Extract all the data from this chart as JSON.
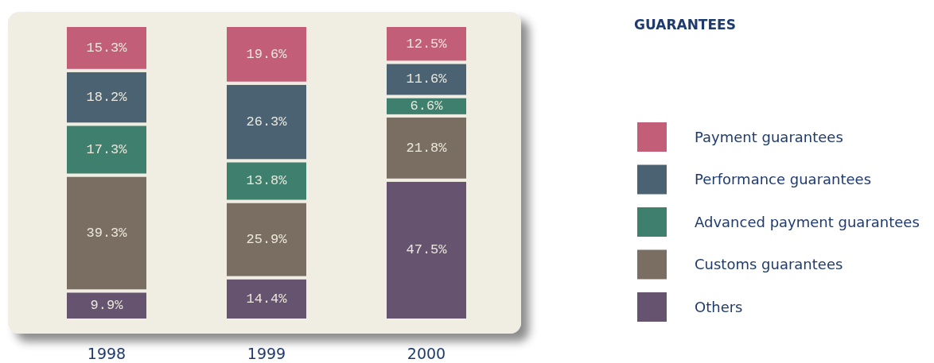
{
  "chart_data": {
    "type": "bar",
    "title": "GUARANTEES",
    "stacked": true,
    "legend": "right",
    "categories": [
      "1998",
      "1999",
      "2000"
    ],
    "series": [
      {
        "name": "Others",
        "color": "#66536f",
        "values": [
          9.9,
          14.4,
          47.5
        ],
        "value_labels": [
          "9.9%",
          "14.4%",
          "47.5%"
        ]
      },
      {
        "name": "Customs guarantees",
        "color": "#7a6e62",
        "values": [
          39.3,
          25.9,
          21.8
        ],
        "value_labels": [
          "39.3%",
          "25.9%",
          "21.8%"
        ]
      },
      {
        "name": "Advanced payment guarantees",
        "color": "#3f7f6e",
        "values": [
          17.3,
          13.8,
          6.6
        ],
        "value_labels": [
          "17.3%",
          "13.8%",
          "6.6%"
        ]
      },
      {
        "name": "Performance guarantees",
        "color": "#4a6272",
        "values": [
          18.2,
          26.3,
          11.6
        ],
        "value_labels": [
          "18.2%",
          "26.3%",
          "11.6%"
        ]
      },
      {
        "name": "Payment guarantees",
        "color": "#c25e78",
        "values": [
          15.3,
          19.6,
          12.5
        ],
        "value_labels": [
          "15.3%",
          "19.6%",
          "12.5%"
        ]
      }
    ]
  }
}
